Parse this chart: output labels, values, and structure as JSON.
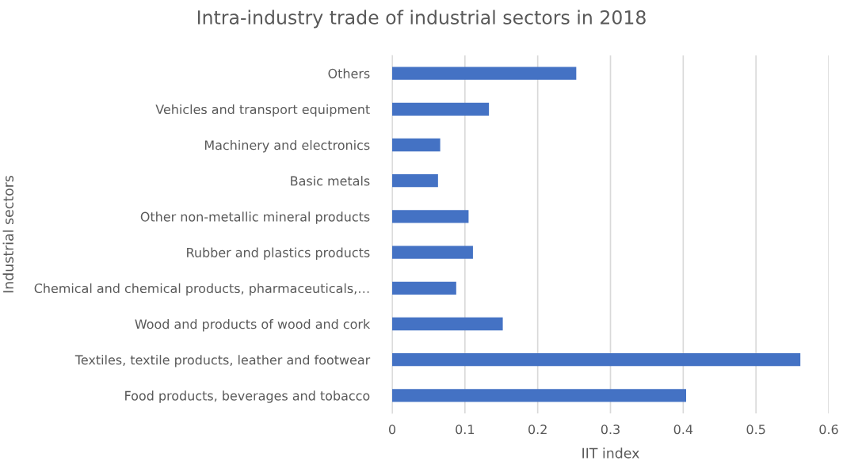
{
  "chart_data": {
    "type": "bar",
    "orientation": "horizontal",
    "title": "Intra-industry trade of industrial sectors in 2018",
    "xlabel": "IIT index",
    "ylabel": "Industrial sectors",
    "categories": [
      "Others",
      "Vehicles and transport equipment",
      "Machinery and electronics",
      "Basic metals",
      "Other non-metallic mineral products",
      "Rubber and plastics products",
      "Chemical and chemical products, pharmaceuticals,…",
      "Wood and products of wood and cork",
      "Textiles, textile products, leather and footwear",
      "Food products, beverages and tobacco"
    ],
    "values": [
      0.253,
      0.133,
      0.066,
      0.063,
      0.105,
      0.111,
      0.088,
      0.152,
      0.561,
      0.404
    ],
    "color": "#4472c4",
    "xlim": [
      0,
      0.6
    ],
    "xticks": [
      0,
      0.1,
      0.2,
      0.3,
      0.4,
      0.5,
      0.6
    ],
    "grid": "x",
    "legend": false
  }
}
